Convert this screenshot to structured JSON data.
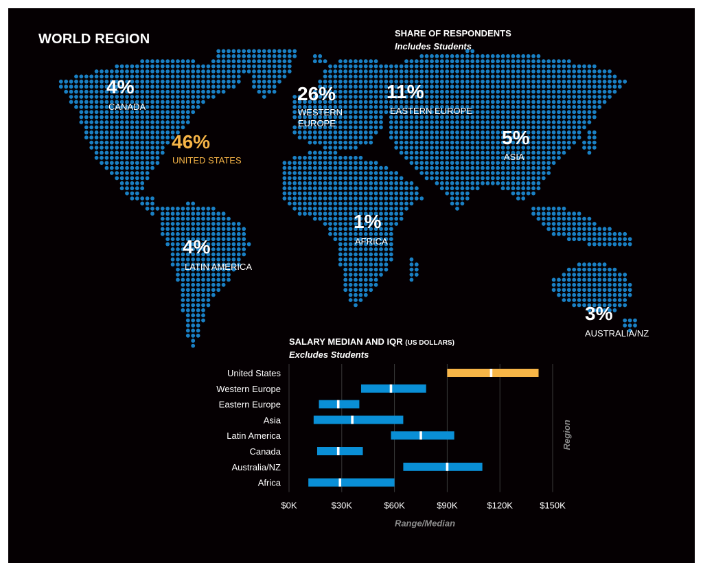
{
  "map": {
    "title": "WORLD REGION",
    "share_title": "SHARE OF RESPONDENTS",
    "share_subtitle": "Includes Students",
    "regions": [
      {
        "id": "canada",
        "pct": "4%",
        "label": "CANADA"
      },
      {
        "id": "united-states",
        "pct": "46%",
        "label": "UNITED STATES"
      },
      {
        "id": "western-europe",
        "pct": "26%",
        "label": "WESTERN\nEUROPE"
      },
      {
        "id": "eastern-europe",
        "pct": "11%",
        "label": "EASTERN EUROPE"
      },
      {
        "id": "asia",
        "pct": "5%",
        "label": "ASIA"
      },
      {
        "id": "africa",
        "pct": "1%",
        "label": "AFRICA"
      },
      {
        "id": "latin-america",
        "pct": "4%",
        "label": "LATIN AMERICA"
      },
      {
        "id": "australia-nz",
        "pct": "3%",
        "label": "AUSTRALIA/NZ"
      }
    ],
    "colors": {
      "dots": "#1a80c4",
      "highlight": "#f7b547",
      "text": "#ffffff"
    }
  },
  "chart_data": {
    "type": "bar",
    "title": "SALARY MEDIAN AND IQR",
    "title_note": "(US DOLLARS)",
    "subtitle": "Excludes Students",
    "xlabel": "Range/Median",
    "ylabel": "Region",
    "xlim": [
      0,
      150000
    ],
    "x_ticks": [
      0,
      30000,
      60000,
      90000,
      120000,
      150000
    ],
    "x_tick_labels": [
      "$0K",
      "$30K",
      "$60K",
      "$90K",
      "$120K",
      "$150K"
    ],
    "grid": true,
    "categories": [
      "United States",
      "Western Europe",
      "Eastern Europe",
      "Asia",
      "Latin America",
      "Canada",
      "Australia/NZ",
      "Africa"
    ],
    "q1": [
      90000,
      41000,
      17000,
      14000,
      58000,
      16000,
      65000,
      11000
    ],
    "median": [
      115000,
      58000,
      28000,
      36000,
      75000,
      28000,
      90000,
      29000
    ],
    "q3": [
      142000,
      78000,
      40000,
      65000,
      94000,
      42000,
      110000,
      60000
    ],
    "highlight_category": "United States",
    "colors": {
      "bar": "#0a8fd6",
      "highlight": "#f7b547",
      "median": "#ffffff",
      "grid": "#3a3a3a",
      "axis_label": "#8c8c8c"
    }
  }
}
